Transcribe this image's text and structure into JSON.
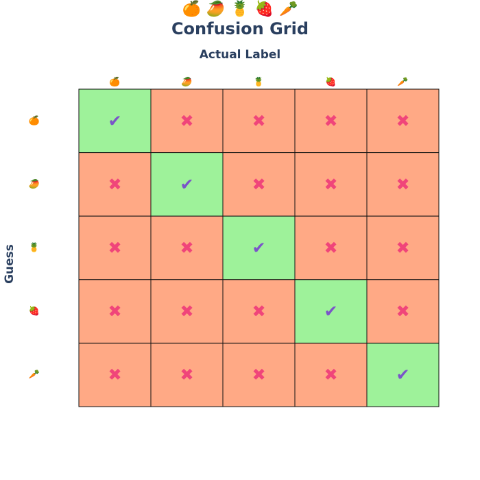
{
  "header": {
    "emojis": [
      "🍊",
      "🥭",
      "🍍",
      "🍓",
      "🥕"
    ]
  },
  "chart_data": {
    "type": "heatmap",
    "title": "Confusion Grid",
    "xlabel": "Actual Label",
    "ylabel": "Guess",
    "x_categories": [
      "🍊",
      "🥭",
      "🍍",
      "🍓",
      "🥕"
    ],
    "y_categories": [
      "🍊",
      "🥭",
      "🍍",
      "🍓",
      "🥕"
    ],
    "z": [
      [
        1,
        0,
        0,
        0,
        0
      ],
      [
        0,
        1,
        0,
        0,
        0
      ],
      [
        0,
        0,
        1,
        0,
        0
      ],
      [
        0,
        0,
        0,
        1,
        0
      ],
      [
        0,
        0,
        0,
        0,
        1
      ]
    ],
    "cell_marks": {
      "correct": "✔",
      "incorrect": "✖"
    },
    "colors": {
      "correct": "#9ef29a",
      "incorrect": "#ffa985",
      "check_mark": "#7a55c8",
      "cross_mark": "#f0457a",
      "grid_line": "#111111",
      "text": "#2a3f5f"
    }
  }
}
